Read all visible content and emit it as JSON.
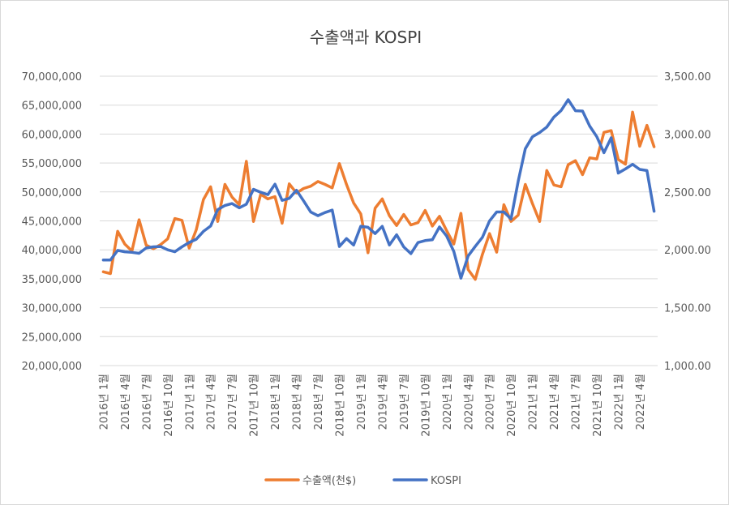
{
  "chart_data": {
    "type": "line",
    "title": "수출액과 KOSPI",
    "grid": true,
    "legend_position": "bottom",
    "left_axis": {
      "ylim": [
        20000000,
        70000000
      ],
      "ticks": [
        "20,000,000",
        "25,000,000",
        "30,000,000",
        "35,000,000",
        "40,000,000",
        "45,000,000",
        "50,000,000",
        "55,000,000",
        "60,000,000",
        "65,000,000",
        "70,000,000"
      ]
    },
    "right_axis": {
      "ylim": [
        1000,
        3500
      ],
      "ticks": [
        "1,000.00",
        "1,500.00",
        "2,000.00",
        "2,500.00",
        "3,000.00",
        "3,500.00"
      ]
    },
    "x_tick_labels": [
      "2016년 1월",
      "2016년 4월",
      "2016년 7월",
      "2016년 10월",
      "2017년 1월",
      "2017년 4월",
      "2017년 7월",
      "2017년 10월",
      "2018년 1월",
      "2018년 4월",
      "2018년 7월",
      "2018년 10월",
      "2019년 1월",
      "2019년 4월",
      "2019년 7월",
      "2019년 10월",
      "2020년 1월",
      "2020년 4월",
      "2020년 7월",
      "2020년 10월",
      "2021년 1월",
      "2021년 4월",
      "2021년 7월",
      "2021년 10월",
      "2022년 1월",
      "2022년 4월"
    ],
    "x_tick_every": 3,
    "series": [
      {
        "name": "수출액(천$)",
        "axis": "left",
        "color": "#ED7D31",
        "values": [
          36200000,
          35900000,
          43200000,
          41000000,
          39800000,
          45200000,
          40800000,
          40200000,
          40900000,
          41900000,
          45400000,
          45100000,
          40300000,
          43500000,
          48700000,
          50900000,
          44900000,
          51300000,
          49100000,
          47800000,
          55300000,
          44900000,
          49600000,
          48800000,
          49200000,
          44600000,
          51400000,
          49800000,
          50600000,
          51000000,
          51800000,
          51300000,
          50700000,
          54900000,
          51300000,
          48100000,
          46200000,
          39500000,
          47200000,
          48800000,
          45900000,
          44200000,
          46100000,
          44300000,
          44700000,
          46800000,
          44100000,
          45800000,
          43300000,
          41000000,
          46300000,
          36600000,
          34900000,
          39200000,
          42800000,
          39600000,
          47800000,
          44900000,
          46000000,
          51300000,
          48000000,
          44900000,
          53700000,
          51200000,
          50900000,
          54700000,
          55400000,
          53000000,
          55900000,
          55700000,
          60300000,
          60600000,
          55600000,
          54800000,
          63800000,
          57900000,
          61500000,
          57800000
        ]
      },
      {
        "name": "KOSPI",
        "axis": "right",
        "color": "#4472C4",
        "values": [
          1912,
          1912,
          1995,
          1983,
          1978,
          1970,
          2016,
          2026,
          2029,
          2000,
          1983,
          2026,
          2064,
          2092,
          2160,
          2205,
          2347,
          2383,
          2400,
          2363,
          2394,
          2523,
          2497,
          2477,
          2567,
          2427,
          2445,
          2515,
          2423,
          2326,
          2295,
          2322,
          2343,
          2029,
          2097,
          2041,
          2204,
          2195,
          2140,
          2203,
          2041,
          2130,
          2025,
          1967,
          2063,
          2080,
          2087,
          2198,
          2119,
          1987,
          1755,
          1947,
          2030,
          2108,
          2249,
          2327,
          2327,
          2267,
          2591,
          2873,
          2977,
          3013,
          3061,
          3147,
          3203,
          3297,
          3202,
          3199,
          3069,
          2977,
          2839,
          2968,
          2663,
          2699,
          2739,
          2695,
          2685,
          2333
        ]
      }
    ]
  }
}
